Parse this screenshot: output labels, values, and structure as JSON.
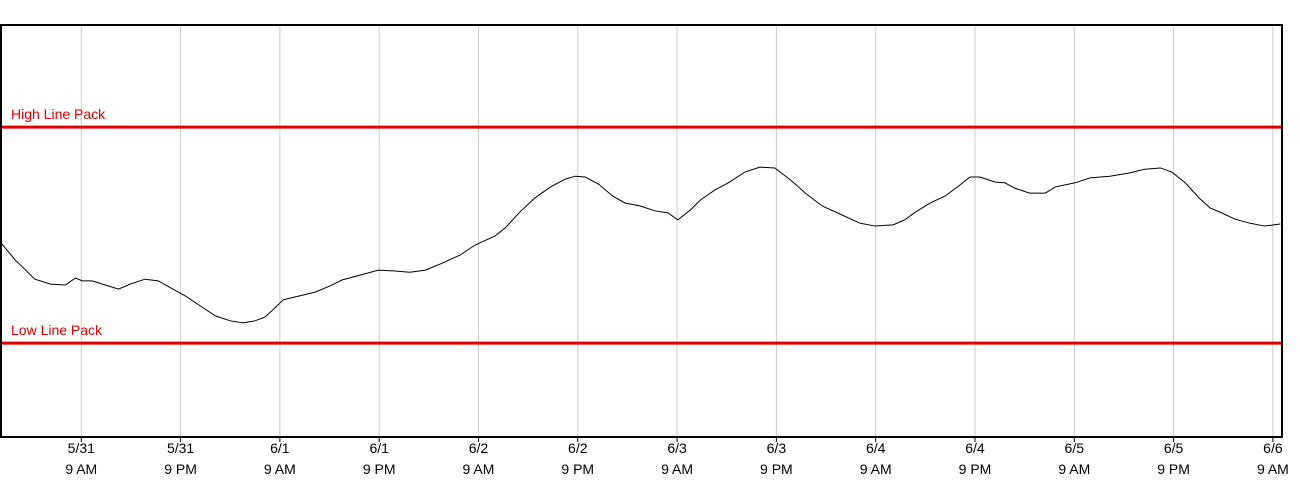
{
  "chart_data": {
    "type": "line",
    "x": [
      -9.7,
      -8.0,
      -5.6,
      -3.7,
      -1.9,
      -0.7,
      0.1,
      1.3,
      2.9,
      4.5,
      5.9,
      7.7,
      9.3,
      10.8,
      12.6,
      14.4,
      16.2,
      18.0,
      19.5,
      21.0,
      22.2,
      23.4,
      24.4,
      25.9,
      28.3,
      30.1,
      31.5,
      33.7,
      35.9,
      37.9,
      39.7,
      41.6,
      43.4,
      45.8,
      47.6,
      50.0,
      51.2,
      53.0,
      54.8,
      56.7,
      58.5,
      59.7,
      60.9,
      62.5,
      64.2,
      65.7,
      67.5,
      69.3,
      70.9,
      72.1,
      73.6,
      74.8,
      76.6,
      78.2,
      80.2,
      82.0,
      83.8,
      85.7,
      87.5,
      89.5,
      91.7,
      94.1,
      95.9,
      98.1,
      99.5,
      100.8,
      102.6,
      104.4,
      106.0,
      107.4,
      108.6,
      110.4,
      111.6,
      112.8,
      114.6,
      116.5,
      117.7,
      120.1,
      121.9,
      124.3,
      126.7,
      128.5,
      130.4,
      131.8,
      133.4,
      135.2,
      136.4,
      137.8,
      139.4,
      141.2,
      143.0,
      144.9
    ],
    "series": [
      {
        "color": "#000000",
        "values": [
          47.1,
          43.0,
          38.3,
          37.1,
          36.9,
          38.6,
          37.9,
          37.9,
          36.9,
          35.9,
          37.1,
          38.3,
          37.9,
          36.2,
          34.2,
          31.8,
          29.4,
          28.2,
          27.7,
          28.2,
          29.1,
          31.3,
          33.3,
          34.0,
          35.2,
          36.7,
          38.1,
          39.3,
          40.5,
          40.3,
          40.0,
          40.5,
          42.0,
          44.2,
          46.6,
          48.8,
          50.7,
          54.6,
          58.0,
          60.7,
          62.6,
          63.3,
          63.1,
          61.4,
          58.5,
          56.8,
          56.1,
          54.9,
          54.4,
          52.7,
          55.1,
          57.5,
          60.0,
          61.7,
          64.3,
          65.5,
          65.3,
          62.4,
          59.2,
          56.1,
          54.1,
          51.9,
          51.2,
          51.5,
          52.7,
          54.6,
          56.8,
          58.5,
          60.9,
          63.1,
          63.1,
          61.9,
          61.7,
          60.4,
          59.2,
          59.2,
          60.7,
          61.7,
          62.9,
          63.3,
          64.1,
          65.0,
          65.3,
          64.3,
          61.7,
          57.8,
          55.6,
          54.4,
          52.9,
          51.9,
          51.2,
          51.7
        ]
      }
    ],
    "reference_lines": [
      {
        "label": "High Line Pack",
        "value": 75.2,
        "color": "#e00000"
      },
      {
        "label": "Low Line Pack",
        "value": 22.8,
        "color": "#e00000"
      }
    ],
    "xlim": [
      -9.7,
      145.1
    ],
    "ylim": [
      0,
      100
    ],
    "xticks": [
      {
        "value": 0,
        "label": "5/31\n9 AM"
      },
      {
        "value": 12,
        "label": "5/31\n9 PM"
      },
      {
        "value": 24,
        "label": "6/1\n9 AM"
      },
      {
        "value": 36,
        "label": "6/1\n9 PM"
      },
      {
        "value": 48,
        "label": "6/2\n9 AM"
      },
      {
        "value": 60,
        "label": "6/2\n9 PM"
      },
      {
        "value": 72,
        "label": "6/3\n9 AM"
      },
      {
        "value": 84,
        "label": "6/3\n9 PM"
      },
      {
        "value": 96,
        "label": "6/4\n9 AM"
      },
      {
        "value": 108,
        "label": "6/4\n9 PM"
      },
      {
        "value": 120,
        "label": "6/5\n9 AM"
      },
      {
        "value": 132,
        "label": "6/5\n9 PM"
      },
      {
        "value": 144,
        "label": "6/6\n9 AM"
      }
    ],
    "grid": true
  }
}
